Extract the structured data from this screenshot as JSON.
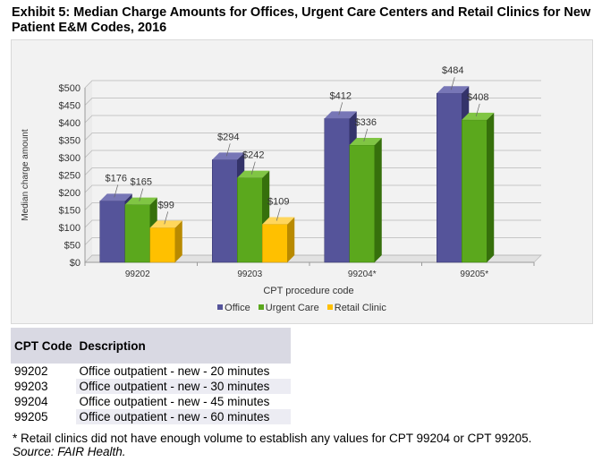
{
  "title": "Exhibit 5: Median Charge Amounts for Offices, Urgent Care Centers and Retail Clinics for New Patient E&M Codes, 2016",
  "chart_data": {
    "type": "bar",
    "title": "",
    "xlabel": "CPT procedure code",
    "ylabel": "Median charge amount",
    "ylim": [
      0,
      500
    ],
    "yticks": [
      0,
      50,
      100,
      150,
      200,
      250,
      300,
      350,
      400,
      450,
      500
    ],
    "ytick_labels": [
      "$0",
      "$50",
      "$100",
      "$150",
      "$200",
      "$250",
      "$300",
      "$350",
      "$400",
      "$450",
      "$500"
    ],
    "categories": [
      "99202",
      "99203",
      "99204*",
      "99205*"
    ],
    "series": [
      {
        "name": "Office",
        "color": "#55549a",
        "dark": "#34336a",
        "top": "#7776b6",
        "values": [
          176,
          294,
          412,
          484
        ],
        "labels": [
          "$176",
          "$294",
          "$412",
          "$484"
        ]
      },
      {
        "name": "Urgent Care",
        "color": "#5ba81d",
        "dark": "#36700c",
        "top": "#80c544",
        "values": [
          165,
          242,
          336,
          408
        ],
        "labels": [
          "$165",
          "$242",
          "$336",
          "$408"
        ]
      },
      {
        "name": "Retail Clinic",
        "color": "#ffc000",
        "dark": "#b98a00",
        "top": "#ffd65c",
        "values": [
          99,
          109,
          null,
          null
        ],
        "labels": [
          "$99",
          "$109",
          "",
          ""
        ]
      }
    ],
    "legend_position": "bottom"
  },
  "table": {
    "headers": {
      "code": "CPT Code",
      "description": "Description"
    },
    "rows": [
      {
        "code": "99202",
        "description": "Office outpatient - new - 20 minutes"
      },
      {
        "code": "99203",
        "description": "Office outpatient - new - 30 minutes"
      },
      {
        "code": "99204",
        "description": "Office outpatient - new - 45 minutes"
      },
      {
        "code": "99205",
        "description": "Office outpatient - new - 60 minutes"
      }
    ]
  },
  "footnote": "* Retail clinics did not have enough volume to establish any values for CPT 99204 or CPT 99205.",
  "source": "Source: FAIR Health."
}
